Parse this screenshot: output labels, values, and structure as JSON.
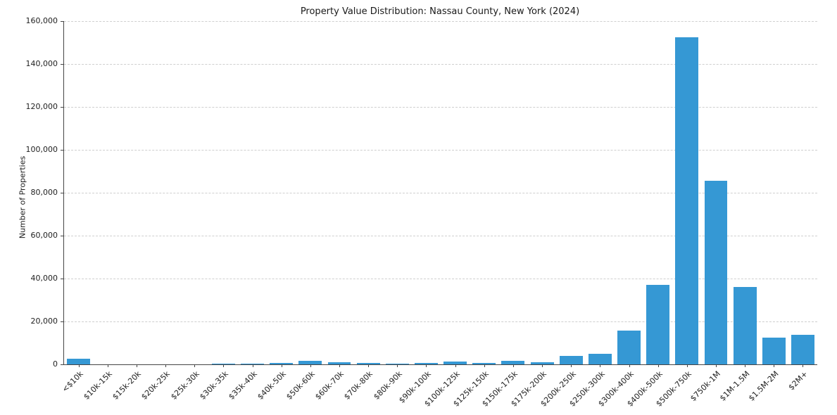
{
  "chart_data": {
    "type": "bar",
    "title": "Property Value Distribution: Nassau County, New York (2024)",
    "xlabel": "",
    "ylabel": "Number of Properties",
    "ylim": [
      0,
      160000
    ],
    "ytick_step": 20000,
    "grid": "horizontal-dashed",
    "legend": "none",
    "bar_color": "#3598d4",
    "categories": [
      "<$10k",
      "$10k-15k",
      "$15k-20k",
      "$20k-25k",
      "$25k-30k",
      "$30k-35k",
      "$35k-40k",
      "$40k-50k",
      "$50k-60k",
      "$60k-70k",
      "$70k-80k",
      "$80k-90k",
      "$90k-100k",
      "$100k-125k",
      "$125k-150k",
      "$150k-175k",
      "$175k-200k",
      "$200k-250k",
      "$250k-300k",
      "$300k-400k",
      "$400k-500k",
      "$500k-750k",
      "$750k-1M",
      "$1M-1.5M",
      "$1.5M-2M",
      "$2M+"
    ],
    "values": [
      2600,
      0,
      0,
      0,
      0,
      300,
      300,
      650,
      1500,
      900,
      700,
      300,
      700,
      1200,
      700,
      1500,
      1100,
      3900,
      4900,
      15800,
      37000,
      152500,
      85500,
      36000,
      12500,
      13800
    ],
    "ytick_labels": [
      "0",
      "20,000",
      "40,000",
      "60,000",
      "80,000",
      "100,000",
      "120,000",
      "140,000",
      "160,000"
    ]
  }
}
